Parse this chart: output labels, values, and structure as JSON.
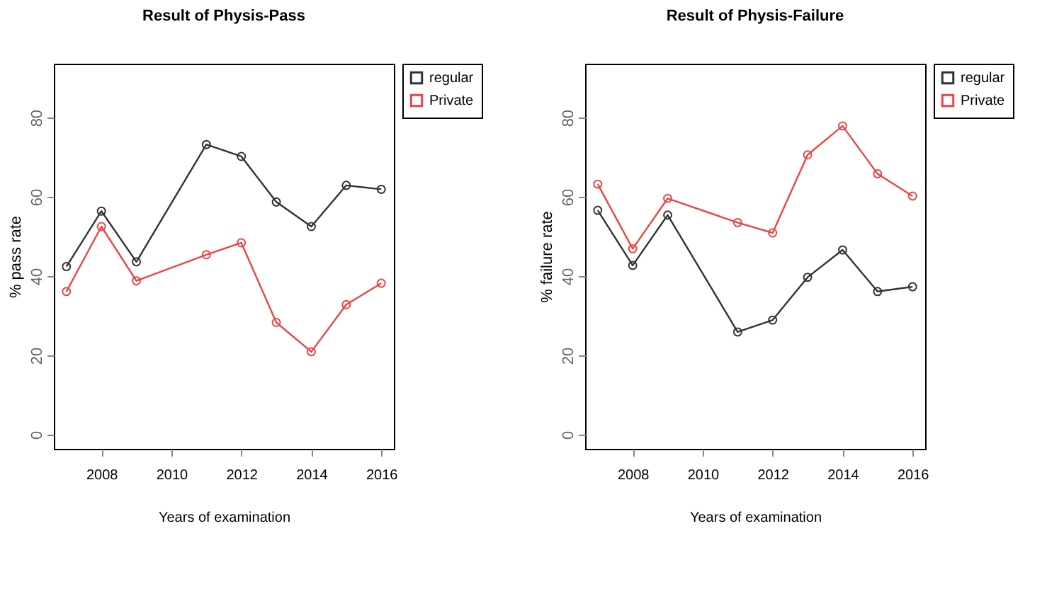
{
  "chart_data": [
    {
      "type": "line",
      "title": "Result of Physis-Pass",
      "xlabel": "Years of examination",
      "ylabel": "% pass rate",
      "x": [
        2007,
        2008,
        2009,
        2011,
        2012,
        2013,
        2014,
        2015,
        2016
      ],
      "series": [
        {
          "name": "regular",
          "color": "#333333",
          "values": [
            42.4,
            56.4,
            43.6,
            73.2,
            70.2,
            58.7,
            52.5,
            62.9,
            61.9
          ]
        },
        {
          "name": "Private",
          "color": "#ee4444",
          "values": [
            36.1,
            52.5,
            38.8,
            45.4,
            48.4,
            28.3,
            20.9,
            32.8,
            38.2
          ]
        }
      ],
      "xlim": [
        2006.64,
        2016.36
      ],
      "xticks": [
        2008,
        2010,
        2012,
        2014,
        2016
      ],
      "ylim": [
        -3.6,
        93.6
      ],
      "yticks": [
        0,
        20,
        40,
        60,
        80
      ],
      "legend": "top right",
      "marker": "circle",
      "line_style": "solid"
    },
    {
      "type": "line",
      "title": "Result of Physis-Failure",
      "xlabel": "Years of examination",
      "ylabel": "% failure rate",
      "x": [
        2007,
        2008,
        2009,
        2011,
        2012,
        2013,
        2014,
        2015,
        2016
      ],
      "series": [
        {
          "name": "regular",
          "color": "#333333",
          "values": [
            56.6,
            42.7,
            55.4,
            25.9,
            28.9,
            39.7,
            46.6,
            36.1,
            37.3
          ]
        },
        {
          "name": "Private",
          "color": "#ee4444",
          "values": [
            63.2,
            46.9,
            59.6,
            53.5,
            50.9,
            70.6,
            77.9,
            65.8,
            60.2
          ]
        }
      ],
      "xlim": [
        2006.64,
        2016.36
      ],
      "xticks": [
        2008,
        2010,
        2012,
        2014,
        2016
      ],
      "ylim": [
        -3.6,
        93.6
      ],
      "yticks": [
        0,
        20,
        40,
        60,
        80
      ],
      "legend": "top right",
      "marker": "circle",
      "line_style": "solid"
    }
  ]
}
